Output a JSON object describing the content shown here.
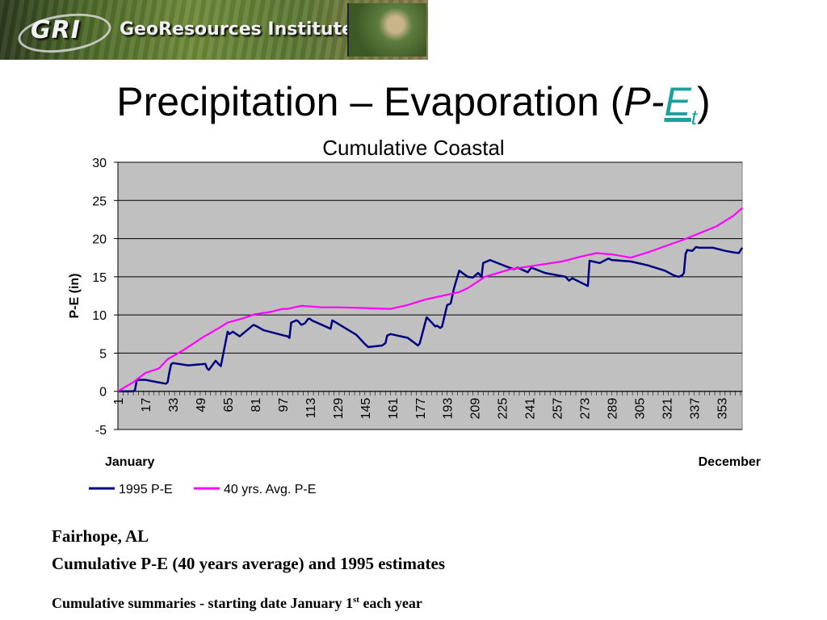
{
  "banner": {
    "logo_text": "GRI",
    "institute_text": "GeoResources Institute"
  },
  "title": {
    "prefix": "Precipitation – Evaporation (",
    "p": "P",
    "dash": "-",
    "e": "E",
    "sub": "t",
    "suffix": ")"
  },
  "footer": {
    "location": "Fairhope, AL",
    "description": "Cumulative P-E (40 years average) and 1995 estimates",
    "note_prefix": "Cumulative summaries - starting date January 1",
    "note_sup": "st",
    "note_suffix": " each year"
  },
  "chart_data": {
    "type": "line",
    "title": "Cumulative Coastal",
    "xlabel_left": "January",
    "xlabel_right": "December",
    "ylabel": "P-E (in)",
    "ylim": [
      -5,
      30
    ],
    "yticks": [
      30,
      25,
      20,
      15,
      10,
      5,
      0,
      -5
    ],
    "xlim": [
      1,
      365
    ],
    "xticks": [
      1,
      17,
      33,
      49,
      65,
      81,
      97,
      113,
      129,
      145,
      161,
      177,
      193,
      209,
      225,
      241,
      257,
      273,
      289,
      305,
      321,
      337,
      353
    ],
    "grid": true,
    "legend_position": "bottom-left",
    "series": [
      {
        "name": "1995 P-E",
        "color": "#000080",
        "x": [
          1,
          10,
          11,
          12,
          17,
          24,
          29,
          30,
          31,
          32,
          33,
          42,
          52,
          53,
          54,
          58,
          60,
          61,
          65,
          66,
          68,
          70,
          72,
          80,
          82,
          86,
          98,
          100,
          101,
          102,
          105,
          106,
          108,
          110,
          112,
          113,
          114,
          125,
          126,
          140,
          145,
          147,
          155,
          157,
          158,
          160,
          170,
          176,
          177,
          181,
          184,
          186,
          187,
          189,
          190,
          193,
          195,
          197,
          200,
          205,
          208,
          211,
          213,
          214,
          218,
          220,
          228,
          232,
          234,
          240,
          242,
          250,
          262,
          264,
          266,
          275,
          276,
          282,
          287,
          289,
          300,
          310,
          320,
          325,
          328,
          330,
          331,
          332,
          333,
          336,
          338,
          340,
          348,
          355,
          360,
          363,
          365
        ],
        "y": [
          0,
          0,
          0.2,
          1.5,
          1.5,
          1.2,
          1.0,
          1.2,
          2.5,
          3.5,
          3.7,
          3.4,
          3.6,
          3.0,
          2.8,
          4.0,
          3.5,
          3.3,
          7.8,
          7.5,
          7.8,
          7.5,
          7.2,
          8.7,
          8.5,
          8.0,
          7.3,
          7.2,
          7.0,
          9.0,
          9.3,
          9.2,
          8.7,
          8.9,
          9.5,
          9.5,
          9.3,
          8.2,
          9.3,
          7.4,
          6.2,
          5.8,
          6.0,
          6.3,
          7.3,
          7.5,
          7.0,
          6.0,
          6.3,
          9.7,
          9.0,
          8.5,
          8.6,
          8.3,
          8.5,
          11.3,
          11.5,
          13.5,
          15.8,
          15.0,
          14.9,
          15.5,
          15.0,
          16.8,
          17.2,
          17.0,
          16.3,
          16.0,
          16.2,
          15.6,
          16.2,
          15.5,
          15.0,
          14.5,
          14.8,
          13.8,
          17.1,
          16.8,
          17.4,
          17.2,
          17.0,
          16.5,
          15.8,
          15.2,
          15.0,
          15.2,
          15.5,
          18.0,
          18.5,
          18.4,
          18.9,
          18.8,
          18.8,
          18.4,
          18.2,
          18.1,
          18.8
        ]
      },
      {
        "name": "40 yrs. Avg. P-E",
        "color": "#ff00ff",
        "x": [
          1,
          10,
          17,
          25,
          30,
          40,
          50,
          60,
          65,
          73,
          81,
          90,
          97,
          100,
          108,
          120,
          130,
          145,
          160,
          170,
          180,
          190,
          200,
          205,
          215,
          230,
          245,
          260,
          270,
          280,
          290,
          300,
          310,
          320,
          330,
          340,
          350,
          360,
          365
        ],
        "y": [
          0,
          1.2,
          2.4,
          3.0,
          4.2,
          5.5,
          7.0,
          8.3,
          9.0,
          9.5,
          10.1,
          10.4,
          10.8,
          10.8,
          11.2,
          11.0,
          11.0,
          10.9,
          10.8,
          11.3,
          12.0,
          12.5,
          13.0,
          13.5,
          15.0,
          16.0,
          16.5,
          17.0,
          17.6,
          18.1,
          17.9,
          17.5,
          18.2,
          19.0,
          19.8,
          20.7,
          21.6,
          23.0,
          24.0
        ]
      }
    ]
  }
}
